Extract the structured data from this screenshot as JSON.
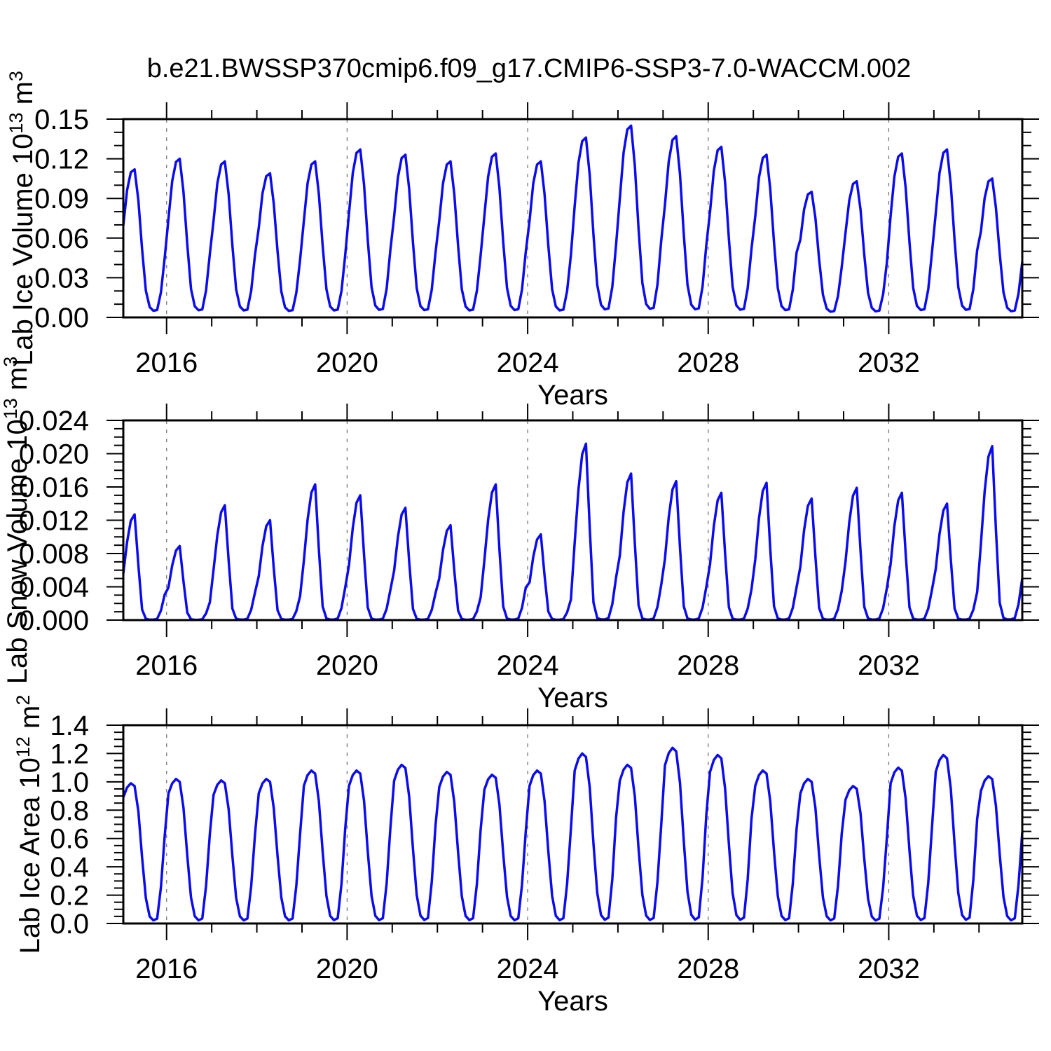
{
  "title": "b.e21.BWSSP370cmip6.f09_g17.CMIP6-SSP3-7.0-WACCM.002",
  "style": {
    "line_color": "#0b0bee",
    "frame_color": "#000000",
    "grid_color": "#777777",
    "background": "#ffffff"
  },
  "chart_data": [
    {
      "type": "line",
      "name": "lab-ice-volume",
      "ylabel": "Lab Ice Volume 10^13 m^3",
      "ylabel_parts": [
        {
          "text": "Lab Ice Volume 10",
          "sup": false
        },
        {
          "text": "13",
          "sup": true
        },
        {
          "text": " m",
          "sup": false
        },
        {
          "text": "3",
          "sup": true
        }
      ],
      "xlabel": "Years",
      "x_range": [
        2015.0417,
        2034.9583
      ],
      "x_major_ticks": [
        2016,
        2020,
        2024,
        2028,
        2032
      ],
      "x_minor_step_years": 1,
      "y_range": [
        0,
        0.15
      ],
      "y_major_step": 0.03,
      "y_minor_step": 0.01,
      "y_tick_decimals": 2,
      "grid": "dashed-vertical-at-major-x",
      "legend": "none",
      "sampling": "monthly, Jan 2015 - Dec 2034",
      "years": [
        2015,
        2016,
        2017,
        2018,
        2019,
        2020,
        2021,
        2022,
        2023,
        2024,
        2025,
        2026,
        2027,
        2028,
        2029,
        2030,
        2031,
        2032,
        2033,
        2034
      ],
      "annual_peak_values": [
        0.112,
        0.12,
        0.118,
        0.109,
        0.118,
        0.127,
        0.123,
        0.118,
        0.124,
        0.118,
        0.136,
        0.145,
        0.137,
        0.129,
        0.123,
        0.095,
        0.103,
        0.124,
        0.127,
        0.105
      ],
      "annual_min_values_approx": [
        0.005,
        0.005,
        0.006,
        0.005,
        0.005,
        0.006,
        0.006,
        0.005,
        0.006,
        0.005,
        0.007,
        0.006,
        0.006,
        0.006,
        0.005,
        0.004,
        0.004,
        0.005,
        0.005,
        0.004
      ],
      "monthly_shape_fraction_of_peak": [
        0.62,
        0.86,
        0.98,
        1.0,
        0.79,
        0.46,
        0.18,
        0.07,
        0.045,
        0.05,
        0.17,
        0.4
      ]
    },
    {
      "type": "line",
      "name": "lab-snow-volume",
      "ylabel": "Lab Snow Volume 10^13 m^3",
      "ylabel_parts": [
        {
          "text": "Lab Snow Volume 10",
          "sup": false
        },
        {
          "text": "13",
          "sup": true
        },
        {
          "text": " m",
          "sup": false
        },
        {
          "text": "3",
          "sup": true
        }
      ],
      "xlabel": "Years",
      "x_range": [
        2015.0417,
        2034.9583
      ],
      "x_major_ticks": [
        2016,
        2020,
        2024,
        2028,
        2032
      ],
      "x_minor_step_years": 1,
      "y_range": [
        0,
        0.024
      ],
      "y_major_step": 0.004,
      "y_minor_step": 0.001,
      "y_tick_decimals": 3,
      "grid": "dashed-vertical-at-major-x",
      "legend": "none",
      "sampling": "monthly, Jan 2015 - Dec 2034",
      "years": [
        2015,
        2016,
        2017,
        2018,
        2019,
        2020,
        2021,
        2022,
        2023,
        2024,
        2025,
        2026,
        2027,
        2028,
        2029,
        2030,
        2031,
        2032,
        2033,
        2034
      ],
      "annual_peak_values": [
        0.0127,
        0.0089,
        0.0138,
        0.012,
        0.0163,
        0.015,
        0.0135,
        0.0114,
        0.0163,
        0.0103,
        0.0212,
        0.0176,
        0.0167,
        0.0153,
        0.0165,
        0.0146,
        0.0159,
        0.0153,
        0.014,
        0.0209
      ],
      "annual_min_values_approx": [
        0.0002,
        0.0002,
        0.0002,
        0.0002,
        0.0002,
        0.0002,
        0.0002,
        0.0002,
        0.0002,
        0.0002,
        0.0002,
        0.0002,
        0.0002,
        0.0002,
        0.0002,
        0.0002,
        0.0002,
        0.0002,
        0.0002,
        0.0002
      ],
      "monthly_shape_fraction_of_peak": [
        0.44,
        0.74,
        0.94,
        1.0,
        0.52,
        0.1,
        0.012,
        0.004,
        0.004,
        0.012,
        0.09,
        0.24
      ]
    },
    {
      "type": "line",
      "name": "lab-ice-area",
      "ylabel": "Lab Ice Area 10^12 m^2",
      "ylabel_parts": [
        {
          "text": "Lab Ice Area 10",
          "sup": false
        },
        {
          "text": "12",
          "sup": true
        },
        {
          "text": " m",
          "sup": false
        },
        {
          "text": "2",
          "sup": true
        }
      ],
      "xlabel": "Years",
      "x_range": [
        2015.0417,
        2034.9583
      ],
      "x_major_ticks": [
        2016,
        2020,
        2024,
        2028,
        2032
      ],
      "x_minor_step_years": 1,
      "y_range": [
        0,
        1.4
      ],
      "y_major_step": 0.2,
      "y_minor_step": 0.05,
      "y_tick_decimals": 1,
      "grid": "dashed-vertical-at-major-x",
      "legend": "none",
      "sampling": "monthly, Jan 2015 - Dec 2034",
      "years": [
        2015,
        2016,
        2017,
        2018,
        2019,
        2020,
        2021,
        2022,
        2023,
        2024,
        2025,
        2026,
        2027,
        2028,
        2029,
        2030,
        2031,
        2032,
        2033,
        2034
      ],
      "annual_peak_values": [
        0.99,
        1.02,
        1.01,
        1.02,
        1.08,
        1.08,
        1.12,
        1.07,
        1.05,
        1.08,
        1.2,
        1.12,
        1.24,
        1.19,
        1.08,
        1.02,
        0.97,
        1.1,
        1.19,
        1.04
      ],
      "annual_min_values_approx": [
        0.02,
        0.02,
        0.02,
        0.02,
        0.02,
        0.02,
        0.03,
        0.02,
        0.02,
        0.03,
        0.02,
        0.02,
        0.02,
        0.02,
        0.02,
        0.02,
        0.02,
        0.02,
        0.02,
        0.02
      ],
      "monthly_shape_fraction_of_peak": [
        0.9,
        0.97,
        1.0,
        0.98,
        0.8,
        0.47,
        0.18,
        0.05,
        0.022,
        0.035,
        0.26,
        0.62
      ]
    }
  ]
}
